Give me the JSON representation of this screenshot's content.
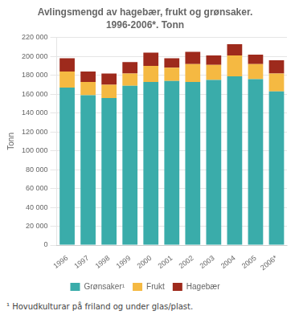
{
  "chart_data": {
    "type": "bar",
    "title": "Avlingsmengd av hagebær, frukt og grønsaker.",
    "subtitle": "1996-2006*. Tonn",
    "y_label": "Tonn",
    "footnote": "¹ Hovudkulturar på friland og under glas/plast.",
    "categories": [
      "1996",
      "1997",
      "1998",
      "1999",
      "2000",
      "2001",
      "2002",
      "2003",
      "2004",
      "2005",
      "2006*"
    ],
    "series": [
      {
        "name": "Grønsaker¹",
        "color": "#3aacaa",
        "values": [
          167000,
          159000,
          156000,
          169000,
          173000,
          174000,
          173000,
          175000,
          179000,
          176000,
          163000
        ]
      },
      {
        "name": "Frukt",
        "color": "#f5b942",
        "values": [
          17000,
          14000,
          14000,
          13000,
          17000,
          14000,
          19000,
          16000,
          22000,
          16000,
          19000
        ]
      },
      {
        "name": "Hagebær",
        "color": "#9e2a1c",
        "values": [
          14000,
          11000,
          12000,
          12000,
          14000,
          10000,
          13000,
          10000,
          12000,
          10000,
          14000
        ]
      }
    ],
    "stacked": true,
    "ylim": [
      0,
      220000
    ],
    "yticks": [
      0,
      {
        "value": 20000,
        "label": "20 000"
      },
      {
        "value": 40000,
        "label": "40 000"
      },
      {
        "value": 60000,
        "label": "60 000"
      },
      {
        "value": 80000,
        "label": "80 000"
      },
      {
        "value": 100000,
        "label": "100 000"
      },
      {
        "value": 120000,
        "label": "120 000"
      },
      {
        "value": 140000,
        "label": "140 000"
      },
      {
        "value": 160000,
        "label": "160 000"
      },
      {
        "value": 180000,
        "label": "180 000"
      },
      {
        "value": 200000,
        "label": "200 000"
      },
      {
        "value": 220000,
        "label": "220 000"
      }
    ],
    "grid": true,
    "legend": "bottom"
  }
}
